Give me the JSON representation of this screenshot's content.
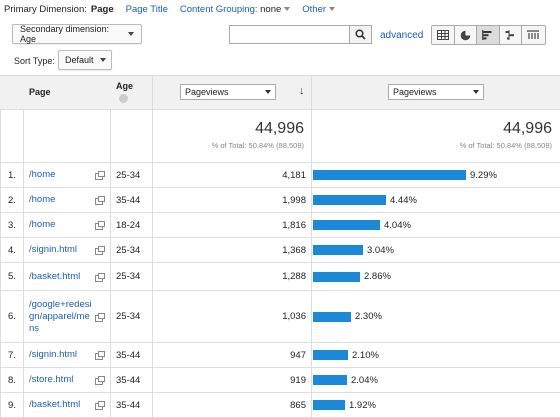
{
  "primary_dimension": {
    "label": "Primary Dimension:",
    "active": "Page",
    "page_title": "Page Title",
    "content_grouping_label": "Content Grouping:",
    "content_grouping_value": "none",
    "other": "Other"
  },
  "secondary_dimension": {
    "label": "Secondary dimension: Age"
  },
  "sort_type": {
    "label": "Sort Type:",
    "value": "Default"
  },
  "search": {
    "value": "",
    "placeholder": ""
  },
  "advanced_link": "advanced",
  "table": {
    "headers": {
      "page": "Page",
      "age": "Age",
      "metric1": "Pageviews",
      "metric2": "Pageviews"
    },
    "totals": {
      "value1": "44,996",
      "sub1": "% of Total: 50.84% (88,508)",
      "value2": "44,996",
      "sub2": "% of Total: 50.84% (88,508)"
    },
    "rows": [
      {
        "idx": "1.",
        "page": "/home",
        "age": "25-34",
        "pageviews": "4,181",
        "pct": "9.29%",
        "share": 9.29
      },
      {
        "idx": "2.",
        "page": "/home",
        "age": "35-44",
        "pageviews": "1,998",
        "pct": "4.44%",
        "share": 4.44
      },
      {
        "idx": "3.",
        "page": "/home",
        "age": "18-24",
        "pageviews": "1,816",
        "pct": "4.04%",
        "share": 4.04
      },
      {
        "idx": "4.",
        "page": "/signin.html",
        "age": "25-34",
        "pageviews": "1,368",
        "pct": "3.04%",
        "share": 3.04
      },
      {
        "idx": "5.",
        "page": "/basket.html",
        "age": "25-34",
        "pageviews": "1,288",
        "pct": "2.86%",
        "share": 2.86
      },
      {
        "idx": "6.",
        "page": "/google+redesign/apparel/mens",
        "age": "25-34",
        "pageviews": "1,036",
        "pct": "2.30%",
        "share": 2.3
      },
      {
        "idx": "7.",
        "page": "/signin.html",
        "age": "35-44",
        "pageviews": "947",
        "pct": "2.10%",
        "share": 2.1
      },
      {
        "idx": "8.",
        "page": "/store.html",
        "age": "35-44",
        "pageviews": "919",
        "pct": "2.04%",
        "share": 2.04
      },
      {
        "idx": "9.",
        "page": "/basket.html",
        "age": "35-44",
        "pageviews": "865",
        "pct": "1.92%",
        "share": 1.92
      }
    ]
  },
  "colors": {
    "bar": "#1b89d8",
    "link": "#1a5fb4"
  },
  "icons": {
    "search": "search-icon",
    "views": [
      "table-view-icon",
      "pie-view-icon",
      "performance-view-icon",
      "comparison-view-icon",
      "pivot-view-icon"
    ],
    "external": "external-link-icon",
    "remove": "remove-dimension-icon"
  }
}
